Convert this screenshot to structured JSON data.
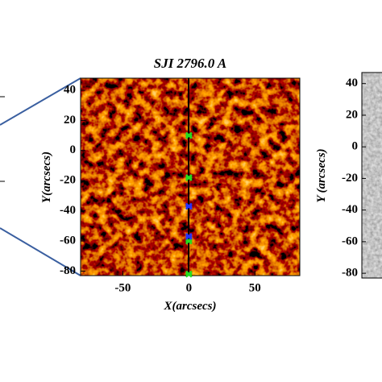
{
  "chart_data": [
    {
      "type": "scatter",
      "title": "SJI 2796.0 A",
      "x_label": "X(arcsecs)",
      "y_label": "Y(arcsecs)",
      "xlim": [
        -82,
        84
      ],
      "ylim": [
        -83,
        48
      ],
      "xticks": [
        -50,
        0,
        50
      ],
      "yticks": [
        40,
        20,
        0,
        -20,
        -40,
        -60,
        -80
      ],
      "series": [
        {
          "color": "#22dd22",
          "x": [
            0,
            0,
            0,
            0
          ],
          "values": [
            10,
            -18,
            -60,
            -82
          ]
        },
        {
          "color": "#2233ff",
          "x": [
            0,
            0
          ],
          "values": [
            -37,
            -57
          ]
        }
      ]
    },
    {
      "type": "image",
      "y_label": "Y (arcsecs)",
      "ylim": [
        -83,
        47
      ],
      "yticks": [
        40,
        20,
        0,
        -20,
        -40,
        -60,
        -80
      ]
    }
  ]
}
